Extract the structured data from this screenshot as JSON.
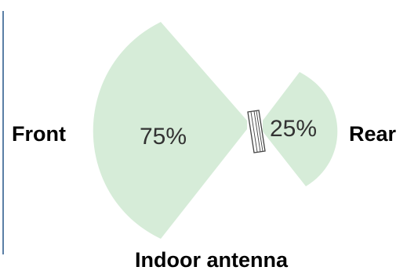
{
  "diagram": {
    "title": "Indoor antenna",
    "front_label": "Front",
    "rear_label": "Rear",
    "front_percent": "75%",
    "rear_percent": "25%",
    "front_share": 0.75,
    "rear_share": 0.25
  },
  "colors": {
    "lobe_fill": "#d6ecd8",
    "border_line": "#5b7fa6",
    "antenna_stroke": "#444444"
  }
}
